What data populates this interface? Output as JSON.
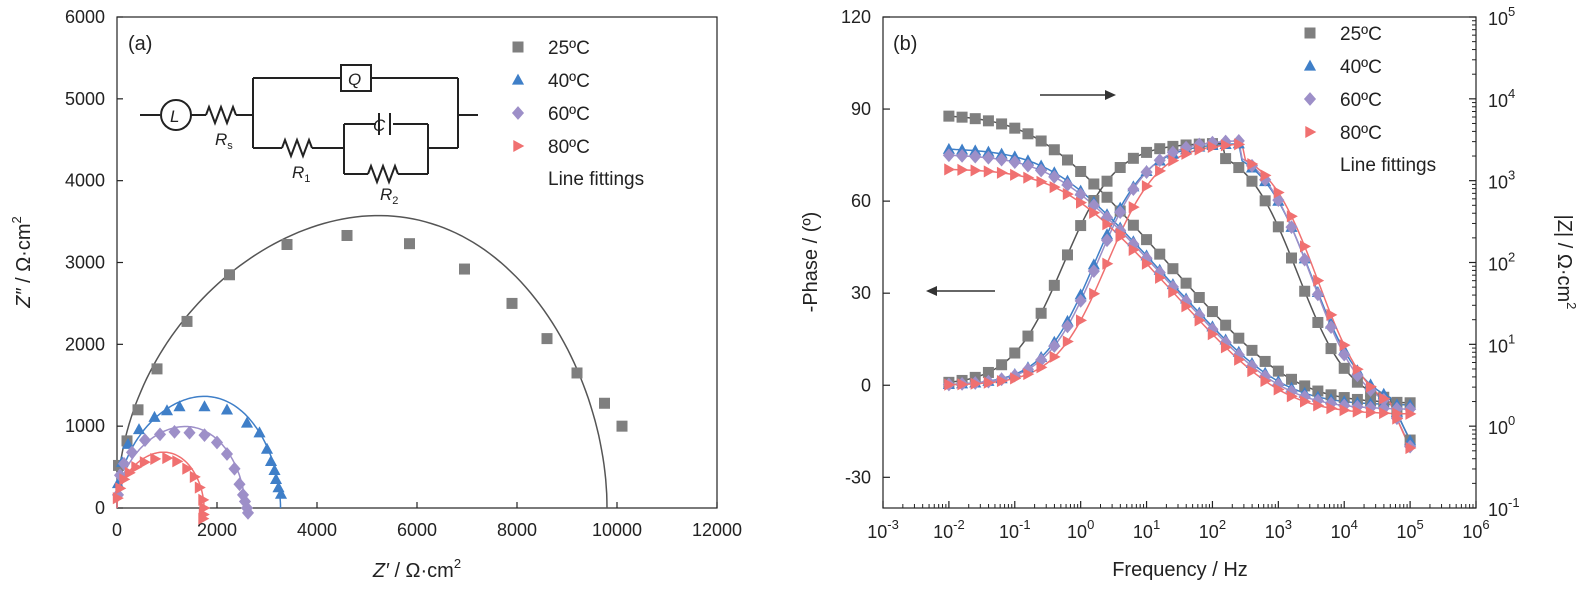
{
  "chart_data": [
    {
      "type": "scatter",
      "panel_label": "(a)",
      "xlabel_var": "Z′",
      "xlabel_unit": " / Ω·cm",
      "ylabel_var": "Z″",
      "ylabel_unit": " / Ω·cm",
      "unit_exp": "2",
      "xlim": [
        0,
        12000
      ],
      "ylim": [
        0,
        6000
      ],
      "xticks": [
        "0",
        "2000",
        "4000",
        "6000",
        "8000",
        "10000",
        "12000"
      ],
      "yticks": [
        "0",
        "1000",
        "2000",
        "3000",
        "4000",
        "5000",
        "6000"
      ],
      "legend": [
        "25ºC",
        "40ºC",
        "60ºC",
        "80ºC",
        "Line fittings"
      ],
      "circuit_labels": {
        "L": "L",
        "Rs": "R",
        "Rs_sub": "s",
        "Q": "Q",
        "R1": "R",
        "R1_sub": "1",
        "C": "C",
        "R2": "R",
        "R2_sub": "2"
      },
      "series": [
        {
          "name": "25ºC",
          "marker": "square",
          "color": "#7f7f7f",
          "points": [
            [
              30,
              520
            ],
            [
              200,
              820
            ],
            [
              420,
              1200
            ],
            [
              800,
              1700
            ],
            [
              1400,
              2280
            ],
            [
              2250,
              2850
            ],
            [
              3400,
              3220
            ],
            [
              4600,
              3330
            ],
            [
              5850,
              3230
            ],
            [
              6950,
              2920
            ],
            [
              7900,
              2500
            ],
            [
              8600,
              2070
            ],
            [
              9200,
              1650
            ],
            [
              9750,
              1280
            ],
            [
              10100,
              1000
            ]
          ],
          "fit": {
            "x0": 0,
            "x1": 9800,
            "R": 9800,
            "peak": 3300
          }
        },
        {
          "name": "40ºC",
          "marker": "triangle",
          "color": "#3f7fc8",
          "points": [
            [
              20,
              300
            ],
            [
              100,
              560
            ],
            [
              220,
              780
            ],
            [
              440,
              960
            ],
            [
              750,
              1110
            ],
            [
              1000,
              1190
            ],
            [
              1250,
              1240
            ],
            [
              1750,
              1240
            ],
            [
              2200,
              1200
            ],
            [
              2600,
              1040
            ],
            [
              2850,
              920
            ],
            [
              3000,
              720
            ],
            [
              3080,
              570
            ],
            [
              3150,
              460
            ],
            [
              3180,
              350
            ],
            [
              3230,
              250
            ],
            [
              3280,
              170
            ]
          ],
          "fit": {
            "x0": 0,
            "x1": 3270,
            "R": 3270,
            "peak": 1260
          }
        },
        {
          "name": "60ºC",
          "marker": "diamond",
          "color": "#9d8fc8",
          "points": [
            [
              20,
              160
            ],
            [
              60,
              400
            ],
            [
              140,
              540
            ],
            [
              300,
              680
            ],
            [
              560,
              830
            ],
            [
              860,
              900
            ],
            [
              1150,
              930
            ],
            [
              1450,
              920
            ],
            [
              1750,
              890
            ],
            [
              2000,
              800
            ],
            [
              2200,
              660
            ],
            [
              2350,
              480
            ],
            [
              2450,
              290
            ],
            [
              2520,
              160
            ],
            [
              2560,
              80
            ],
            [
              2600,
              0
            ],
            [
              2620,
              -60
            ]
          ],
          "fit": {
            "x0": 0,
            "x1": 2560,
            "R": 2560,
            "peak": 920
          }
        },
        {
          "name": "80ºC",
          "marker": "triangle-right",
          "color": "#f07070",
          "points": [
            [
              10,
              120
            ],
            [
              60,
              240
            ],
            [
              140,
              350
            ],
            [
              250,
              430
            ],
            [
              380,
              500
            ],
            [
              550,
              560
            ],
            [
              760,
              600
            ],
            [
              1000,
              610
            ],
            [
              1200,
              570
            ],
            [
              1400,
              480
            ],
            [
              1550,
              380
            ],
            [
              1650,
              250
            ],
            [
              1720,
              100
            ],
            [
              1740,
              0
            ],
            [
              1730,
              -80
            ],
            [
              1720,
              -130
            ]
          ],
          "fit": {
            "x0": 0,
            "x1": 1740,
            "R": 1740,
            "peak": 630
          }
        }
      ]
    },
    {
      "type": "line",
      "panel_label": "(b)",
      "xlabel": "Frequency / Hz",
      "ylabel_left": "-Phase / (º)",
      "ylabel_right_var": "|Z|",
      "ylabel_right_unit": " / Ω·cm",
      "unit_exp": "2",
      "x_scale": "log",
      "xlim": [
        0.001,
        1000000
      ],
      "ylim_left": [
        -40,
        120
      ],
      "ylim_right": [
        0.1,
        100000
      ],
      "y_scale_right": "log",
      "xtick_base": "10",
      "xtick_exps": [
        "-3",
        "-2",
        "-1",
        "0",
        "1",
        "2",
        "3",
        "4",
        "5",
        "6"
      ],
      "yticks_left": [
        "-30",
        "0",
        "30",
        "60",
        "90",
        "120"
      ],
      "ytick_right_base": "10",
      "ytick_right_exps": [
        "-1",
        "0",
        "1",
        "2",
        "3",
        "4",
        "5"
      ],
      "legend": [
        "25ºC",
        "40ºC",
        "60ºC",
        "80ºC",
        "Line fittings"
      ],
      "series": [
        {
          "name": "25ºC",
          "marker": "square",
          "color": "#7f7f7f",
          "modulus": {
            "R": 6500,
            "Rs": 1.9,
            "fc": 0.22,
            "alpha": 0.92
          },
          "phase": {
            "peak": 79,
            "fpk": 50,
            "flo": 0.55,
            "hf": -7
          }
        },
        {
          "name": "40ºC",
          "marker": "triangle",
          "color": "#3f7fc8",
          "modulus": {
            "R": 2500,
            "Rs": 1.8,
            "fc": 0.4,
            "alpha": 0.93
          },
          "phase": {
            "peak": 79,
            "fpk": 80,
            "flo": 1.6,
            "hf": -8
          }
        },
        {
          "name": "60ºC",
          "marker": "diamond",
          "color": "#9d8fc8",
          "modulus": {
            "R": 2100,
            "Rs": 1.6,
            "fc": 0.45,
            "alpha": 0.93
          },
          "phase": {
            "peak": 80,
            "fpk": 80,
            "flo": 1.8,
            "hf": -10
          }
        },
        {
          "name": "80ºC",
          "marker": "triangle-right",
          "color": "#f07070",
          "modulus": {
            "R": 1400,
            "Rs": 1.4,
            "fc": 0.6,
            "alpha": 0.93
          },
          "phase": {
            "peak": 79,
            "fpk": 100,
            "flo": 2.5,
            "hf": -11
          }
        }
      ]
    }
  ]
}
